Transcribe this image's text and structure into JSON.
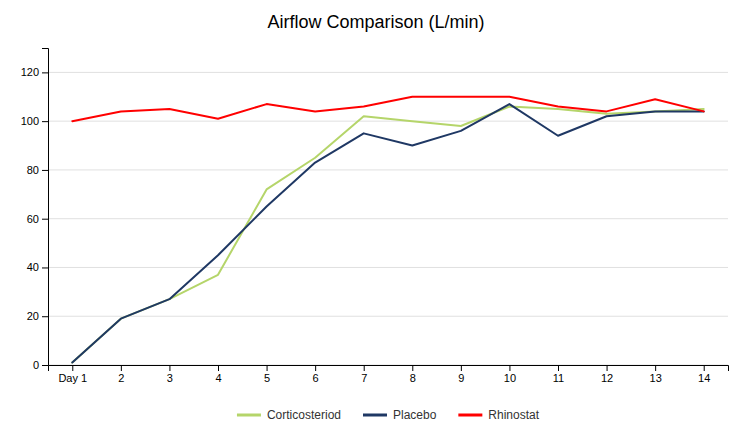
{
  "chart_data": {
    "type": "line",
    "title": "Airflow Comparison (L/min)",
    "x": [
      1,
      2,
      3,
      4,
      5,
      6,
      7,
      8,
      9,
      10,
      11,
      12,
      13,
      14
    ],
    "xlim": [
      0.5,
      14.5
    ],
    "xticks": [
      {
        "value": 1,
        "label": "Day 1"
      },
      2,
      3,
      4,
      5,
      6,
      7,
      8,
      9,
      10,
      11,
      12,
      13,
      14
    ],
    "ylim": [
      0,
      130
    ],
    "yticks": [
      0,
      20,
      40,
      60,
      80,
      100,
      120
    ],
    "grid": true,
    "legend": "bottom",
    "series": [
      {
        "name": "Corticosteriod",
        "color": "#B5D56A",
        "values": [
          1,
          19,
          27,
          37,
          72,
          85,
          102,
          100,
          98,
          106,
          105,
          103,
          104,
          105
        ]
      },
      {
        "name": "Placebo",
        "color": "#1F3864",
        "values": [
          1,
          19,
          27,
          45,
          65,
          83,
          95,
          90,
          96,
          107,
          94,
          102,
          104,
          104
        ]
      },
      {
        "name": "Rhinostat",
        "color": "#FF0000",
        "values": [
          100,
          104,
          105,
          101,
          107,
          104,
          106,
          110,
          110,
          110,
          106,
          104,
          109,
          104
        ]
      }
    ]
  }
}
